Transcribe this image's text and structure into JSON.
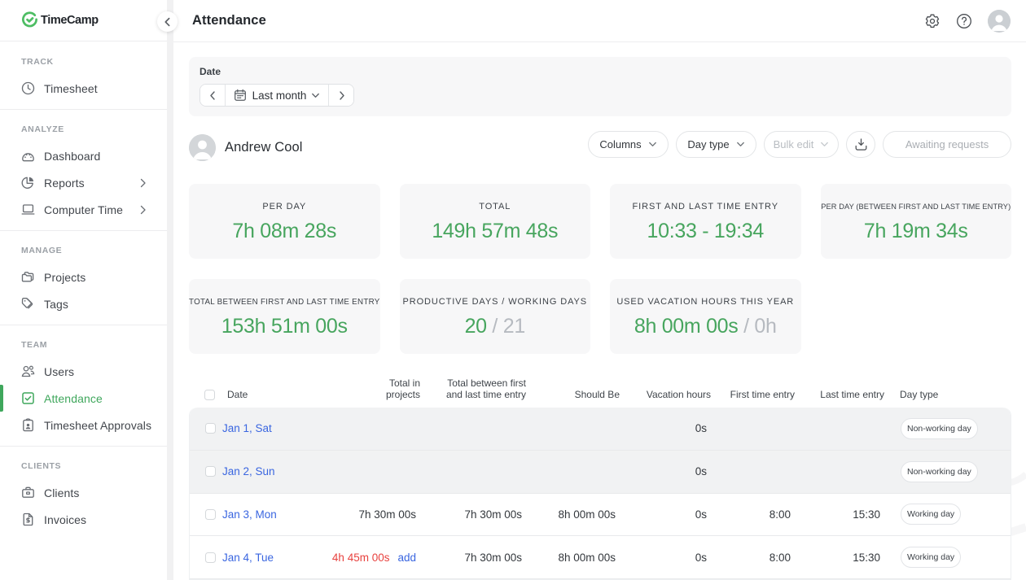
{
  "brand": {
    "name": "TimeCamp"
  },
  "sidebar": {
    "sections": [
      {
        "title": "TRACK",
        "items": [
          {
            "label": "Timesheet",
            "icon": "clock-icon"
          }
        ]
      },
      {
        "title": "ANALYZE",
        "items": [
          {
            "label": "Dashboard",
            "icon": "dashboard-icon"
          },
          {
            "label": "Reports",
            "icon": "reports-icon",
            "expandable": true
          },
          {
            "label": "Computer Time",
            "icon": "computer-icon",
            "expandable": true
          }
        ]
      },
      {
        "title": "MANAGE",
        "items": [
          {
            "label": "Projects",
            "icon": "projects-icon"
          },
          {
            "label": "Tags",
            "icon": "tags-icon"
          }
        ]
      },
      {
        "title": "TEAM",
        "items": [
          {
            "label": "Users",
            "icon": "users-icon"
          },
          {
            "label": "Attendance",
            "icon": "attendance-icon",
            "active": true
          },
          {
            "label": "Timesheet Approvals",
            "icon": "approvals-icon"
          }
        ]
      },
      {
        "title": "CLIENTS",
        "items": [
          {
            "label": "Clients",
            "icon": "clients-icon"
          },
          {
            "label": "Invoices",
            "icon": "invoices-icon"
          }
        ]
      }
    ]
  },
  "header": {
    "title": "Attendance"
  },
  "filters": {
    "date_label": "Date",
    "range_label": "Last month"
  },
  "user": {
    "name": "Andrew Cool"
  },
  "toolbar": {
    "columns_label": "Columns",
    "day_type_label": "Day type",
    "bulk_edit_label": "Bulk edit",
    "awaiting_label": "Awaiting requests"
  },
  "stats": [
    {
      "label": "PER DAY",
      "value": "7h 08m 28s"
    },
    {
      "label": "TOTAL",
      "value": "149h 57m 48s"
    },
    {
      "label": "FIRST AND LAST TIME ENTRY",
      "value": "10:33 - 19:34"
    },
    {
      "label": "PER DAY (BETWEEN FIRST AND LAST TIME ENTRY)",
      "value": "7h 19m 34s"
    },
    {
      "label": "TOTAL BETWEEN FIRST AND LAST TIME ENTRY",
      "value": "153h 51m 00s"
    },
    {
      "label": "PRODUCTIVE DAYS / WORKING DAYS",
      "value": "20",
      "muted": " / 21"
    },
    {
      "label": "USED VACATION HOURS THIS YEAR",
      "value": "8h 00m 00s",
      "muted": " / 0h"
    }
  ],
  "table": {
    "headers": {
      "date": "Date",
      "total_in_projects": "Total in projects",
      "total_between": "Total between first and last time entry",
      "should_be": "Should Be",
      "vacation_hours": "Vacation hours",
      "first_time_entry": "First time entry",
      "last_time_entry": "Last time entry",
      "day_type": "Day type"
    },
    "rows": [
      {
        "date": "Jan 1, Sat",
        "total_in_projects": "",
        "add": false,
        "total_between": "",
        "should_be": "",
        "vacation_hours": "0s",
        "first_time_entry": "",
        "last_time_entry": "",
        "day_type": "Non-working day",
        "gray": true,
        "alert": false
      },
      {
        "date": "Jan 2, Sun",
        "total_in_projects": "",
        "add": false,
        "total_between": "",
        "should_be": "",
        "vacation_hours": "0s",
        "first_time_entry": "",
        "last_time_entry": "",
        "day_type": "Non-working day",
        "gray": true,
        "alert": false
      },
      {
        "date": "Jan 3, Mon",
        "total_in_projects": "7h 30m 00s",
        "add": false,
        "total_between": "7h 30m 00s",
        "should_be": "8h 00m 00s",
        "vacation_hours": "0s",
        "first_time_entry": "8:00",
        "last_time_entry": "15:30",
        "day_type": "Working day",
        "gray": false,
        "alert": false
      },
      {
        "date": "Jan 4, Tue",
        "total_in_projects": "4h 45m 00s",
        "add": true,
        "add_label": "add",
        "total_between": "7h 30m 00s",
        "should_be": "8h 00m 00s",
        "vacation_hours": "0s",
        "first_time_entry": "8:00",
        "last_time_entry": "15:30",
        "day_type": "Working day",
        "gray": false,
        "alert": true
      }
    ]
  },
  "colors": {
    "accent_green": "#3fa75c",
    "stat_green": "#47a55e",
    "link_blue": "#3a66e0",
    "alert_red": "#e8423f"
  }
}
